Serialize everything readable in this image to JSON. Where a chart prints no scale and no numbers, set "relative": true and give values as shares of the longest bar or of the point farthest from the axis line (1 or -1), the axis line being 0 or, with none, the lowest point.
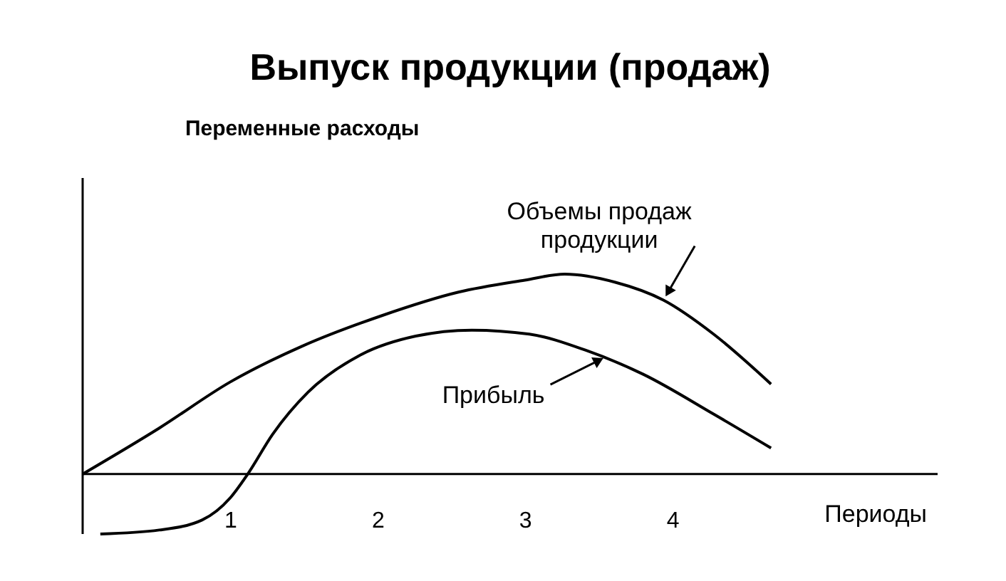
{
  "chart_data": {
    "type": "line",
    "title": "Выпуск продукции (продаж)",
    "xlabel": "Периоды",
    "relative": true,
    "xlim": [
      0,
      5.8
    ],
    "xticks": [
      1,
      2,
      3,
      4
    ],
    "series": [
      {
        "color": "#000000",
        "x": [
          0,
          0.52,
          1.0,
          1.49,
          2.02,
          2.55,
          3.0,
          3.27,
          3.61,
          3.94,
          4.28,
          4.67
        ],
        "values": [
          0,
          0.23,
          0.46,
          0.64,
          0.79,
          0.91,
          0.97,
          1,
          0.96,
          0.87,
          0.7,
          0.45
        ]
      },
      {
        "color": "#000000",
        "x": [
          0.12,
          0.52,
          0.81,
          1.0,
          1.12,
          1.29,
          1.53,
          1.87,
          2.26,
          2.64,
          3.03,
          3.41,
          3.8,
          4.28,
          4.67
        ],
        "values": [
          -0.3,
          -0.28,
          -0.23,
          -0.12,
          0,
          0.2,
          0.41,
          0.59,
          0.69,
          0.72,
          0.7,
          0.62,
          0.5,
          0.3,
          0.13
        ]
      }
    ],
    "annotations": [
      "Переменные расходы",
      {
        "text": "Объемы продаж продукции",
        "x": 3.94,
        "y": 0.87
      },
      {
        "text": "Прибыль",
        "x": 3.56,
        "y": 0.59
      }
    ]
  }
}
